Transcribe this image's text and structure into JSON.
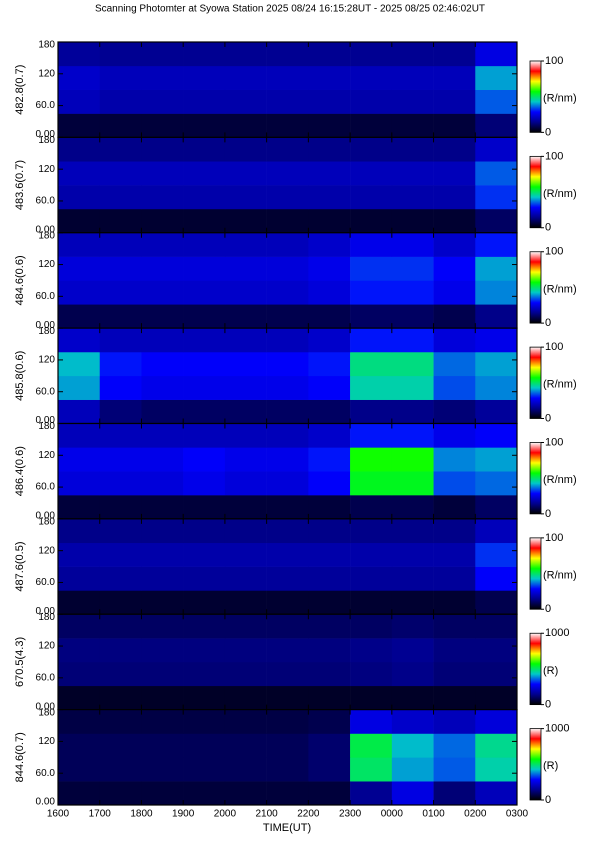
{
  "title": "Scanning Photomter at Syowa Station 2025 08/24 16:15:28UT - 2025 08/25 02:46:02UT",
  "xlabel": "TIME(UT)",
  "colormap": [
    "#000000",
    "#00008c",
    "#0000ff",
    "#00c8c8",
    "#00ff00",
    "#ffff00",
    "#ff0000",
    "#ffffff"
  ],
  "chart_data": [
    {
      "type": "heatmap",
      "ylabel": "482.8(0.7)",
      "colorbar_label": "(R/nm)",
      "zlim": [
        0,
        100
      ],
      "zticks": [
        0,
        100
      ],
      "xlim": [
        16,
        27
      ],
      "xticks": [
        {
          "value": 16,
          "label": "1600"
        },
        {
          "value": 17,
          "label": "1700"
        },
        {
          "value": 18,
          "label": "1800"
        },
        {
          "value": 19,
          "label": "1900"
        },
        {
          "value": 20,
          "label": "2000"
        },
        {
          "value": 21,
          "label": "2100"
        },
        {
          "value": 22,
          "label": "2200"
        },
        {
          "value": 23,
          "label": "2300"
        },
        {
          "value": 24,
          "label": "0000"
        },
        {
          "value": 25,
          "label": "0100"
        },
        {
          "value": 26,
          "label": "0200"
        },
        {
          "value": 27,
          "label": "0300"
        }
      ],
      "ylim": [
        0,
        180
      ],
      "yticks": [
        {
          "value": 0,
          "label": "0.00"
        },
        {
          "value": 60,
          "label": "60.0"
        },
        120,
        180
      ],
      "xbins": [
        16,
        17,
        18,
        19,
        20,
        21,
        22,
        23,
        24,
        25,
        26,
        27
      ],
      "ybins": [
        0,
        45,
        90,
        135,
        180
      ],
      "z": [
        [
          6,
          6,
          6,
          6,
          6,
          6,
          6,
          6,
          6,
          6,
          12
        ],
        [
          20,
          18,
          18,
          18,
          18,
          18,
          18,
          18,
          18,
          18,
          35
        ],
        [
          22,
          20,
          20,
          20,
          20,
          20,
          20,
          20,
          20,
          20,
          40
        ],
        [
          16,
          15,
          15,
          15,
          15,
          15,
          15,
          15,
          15,
          15,
          25
        ]
      ]
    },
    {
      "type": "heatmap",
      "ylabel": "483.6(0.7)",
      "colorbar_label": "(R/nm)",
      "zlim": [
        0,
        100
      ],
      "zticks": [
        0,
        100
      ],
      "xlim": [
        16,
        27
      ],
      "xticks": [
        {
          "value": 16,
          "label": "1600"
        },
        {
          "value": 17,
          "label": "1700"
        },
        {
          "value": 18,
          "label": "1800"
        },
        {
          "value": 19,
          "label": "1900"
        },
        {
          "value": 20,
          "label": "2000"
        },
        {
          "value": 21,
          "label": "2100"
        },
        {
          "value": 22,
          "label": "2200"
        },
        {
          "value": 23,
          "label": "2300"
        },
        {
          "value": 24,
          "label": "0000"
        },
        {
          "value": 25,
          "label": "0100"
        },
        {
          "value": 26,
          "label": "0200"
        },
        {
          "value": 27,
          "label": "0300"
        }
      ],
      "ylim": [
        0,
        180
      ],
      "yticks": [
        {
          "value": 0,
          "label": "0.00"
        },
        {
          "value": 60,
          "label": "60.0"
        },
        120,
        180
      ],
      "xbins": [
        16,
        17,
        18,
        19,
        20,
        21,
        22,
        23,
        24,
        25,
        26,
        27
      ],
      "ybins": [
        0,
        45,
        90,
        135,
        180
      ],
      "z": [
        [
          5,
          5,
          5,
          5,
          5,
          5,
          5,
          5,
          5,
          5,
          10
        ],
        [
          18,
          18,
          18,
          18,
          18,
          18,
          18,
          18,
          18,
          18,
          32
        ],
        [
          20,
          20,
          20,
          20,
          20,
          20,
          20,
          20,
          20,
          20,
          35
        ],
        [
          14,
          14,
          14,
          14,
          14,
          14,
          14,
          14,
          14,
          14,
          22
        ]
      ]
    },
    {
      "type": "heatmap",
      "ylabel": "484.6(0.6)",
      "colorbar_label": "(R/nm)",
      "zlim": [
        0,
        100
      ],
      "zticks": [
        0,
        100
      ],
      "xlim": [
        16,
        27
      ],
      "xticks": [
        {
          "value": 16,
          "label": "1600"
        },
        {
          "value": 17,
          "label": "1700"
        },
        {
          "value": 18,
          "label": "1800"
        },
        {
          "value": 19,
          "label": "1900"
        },
        {
          "value": 20,
          "label": "2000"
        },
        {
          "value": 21,
          "label": "2100"
        },
        {
          "value": 22,
          "label": "2200"
        },
        {
          "value": 23,
          "label": "2300"
        },
        {
          "value": 24,
          "label": "0000"
        },
        {
          "value": 25,
          "label": "0100"
        },
        {
          "value": 26,
          "label": "0200"
        },
        {
          "value": 27,
          "label": "0300"
        }
      ],
      "ylim": [
        0,
        180
      ],
      "yticks": [
        {
          "value": 0,
          "label": "0.00"
        },
        {
          "value": 60,
          "label": "60.0"
        },
        120,
        180
      ],
      "xbins": [
        16,
        17,
        18,
        19,
        20,
        21,
        22,
        23,
        24,
        25,
        26,
        27
      ],
      "ybins": [
        0,
        45,
        90,
        135,
        180
      ],
      "z": [
        [
          8,
          8,
          8,
          8,
          8,
          8,
          8,
          10,
          10,
          8,
          14
        ],
        [
          22,
          22,
          22,
          22,
          22,
          22,
          24,
          30,
          30,
          26,
          38
        ],
        [
          24,
          24,
          24,
          24,
          24,
          24,
          26,
          32,
          32,
          28,
          40
        ],
        [
          20,
          20,
          20,
          20,
          20,
          20,
          22,
          26,
          26,
          22,
          30
        ]
      ]
    },
    {
      "type": "heatmap",
      "ylabel": "485.8(0.6)",
      "colorbar_label": "(R/nm)",
      "zlim": [
        0,
        100
      ],
      "zticks": [
        0,
        100
      ],
      "xlim": [
        16,
        27
      ],
      "xticks": [
        {
          "value": 16,
          "label": "1600"
        },
        {
          "value": 17,
          "label": "1700"
        },
        {
          "value": 18,
          "label": "1800"
        },
        {
          "value": 19,
          "label": "1900"
        },
        {
          "value": 20,
          "label": "2000"
        },
        {
          "value": 21,
          "label": "2100"
        },
        {
          "value": 22,
          "label": "2200"
        },
        {
          "value": 23,
          "label": "2300"
        },
        {
          "value": 24,
          "label": "0000"
        },
        {
          "value": 25,
          "label": "0100"
        },
        {
          "value": 26,
          "label": "0200"
        },
        {
          "value": 27,
          "label": "0300"
        }
      ],
      "ylim": [
        0,
        180
      ],
      "yticks": [
        {
          "value": 0,
          "label": "0.00"
        },
        {
          "value": 60,
          "label": "60.0"
        },
        120,
        180
      ],
      "xbins": [
        16,
        17,
        18,
        19,
        20,
        21,
        22,
        23,
        24,
        25,
        26,
        27
      ],
      "ybins": [
        0,
        45,
        90,
        135,
        180
      ],
      "z": [
        [
          20,
          12,
          10,
          10,
          10,
          10,
          10,
          14,
          14,
          12,
          16
        ],
        [
          40,
          28,
          26,
          26,
          26,
          26,
          28,
          45,
          45,
          34,
          38
        ],
        [
          42,
          30,
          28,
          28,
          28,
          28,
          30,
          48,
          48,
          36,
          40
        ],
        [
          22,
          20,
          20,
          20,
          20,
          20,
          22,
          30,
          30,
          24,
          26
        ]
      ]
    },
    {
      "type": "heatmap",
      "ylabel": "486.4(0.6)",
      "colorbar_label": "(R/nm)",
      "zlim": [
        0,
        100
      ],
      "zticks": [
        0,
        100
      ],
      "xlim": [
        16,
        27
      ],
      "xticks": [
        {
          "value": 16,
          "label": "1600"
        },
        {
          "value": 17,
          "label": "1700"
        },
        {
          "value": 18,
          "label": "1800"
        },
        {
          "value": 19,
          "label": "1900"
        },
        {
          "value": 20,
          "label": "2000"
        },
        {
          "value": 21,
          "label": "2100"
        },
        {
          "value": 22,
          "label": "2200"
        },
        {
          "value": 23,
          "label": "2300"
        },
        {
          "value": 24,
          "label": "0000"
        },
        {
          "value": 25,
          "label": "0100"
        },
        {
          "value": 26,
          "label": "0200"
        },
        {
          "value": 27,
          "label": "0300"
        }
      ],
      "ylim": [
        0,
        180
      ],
      "yticks": [
        {
          "value": 0,
          "label": "0.00"
        },
        {
          "value": 60,
          "label": "60.0"
        },
        120,
        180
      ],
      "xbins": [
        16,
        17,
        18,
        19,
        20,
        21,
        22,
        23,
        24,
        25,
        26,
        27
      ],
      "ybins": [
        0,
        45,
        90,
        135,
        180
      ],
      "z": [
        [
          6,
          6,
          6,
          6,
          6,
          6,
          6,
          8,
          8,
          6,
          10
        ],
        [
          24,
          24,
          24,
          26,
          24,
          24,
          28,
          55,
          55,
          34,
          36
        ],
        [
          26,
          26,
          26,
          28,
          26,
          26,
          30,
          58,
          58,
          38,
          40
        ],
        [
          20,
          20,
          20,
          20,
          20,
          20,
          22,
          30,
          30,
          26,
          28
        ]
      ]
    },
    {
      "type": "heatmap",
      "ylabel": "487.6(0.5)",
      "colorbar_label": "(R/nm)",
      "zlim": [
        0,
        100
      ],
      "zticks": [
        0,
        100
      ],
      "xlim": [
        16,
        27
      ],
      "xticks": [
        {
          "value": 16,
          "label": "1600"
        },
        {
          "value": 17,
          "label": "1700"
        },
        {
          "value": 18,
          "label": "1800"
        },
        {
          "value": 19,
          "label": "1900"
        },
        {
          "value": 20,
          "label": "2000"
        },
        {
          "value": 21,
          "label": "2100"
        },
        {
          "value": 22,
          "label": "2200"
        },
        {
          "value": 23,
          "label": "2300"
        },
        {
          "value": 24,
          "label": "0000"
        },
        {
          "value": 25,
          "label": "0100"
        },
        {
          "value": 26,
          "label": "0200"
        },
        {
          "value": 27,
          "label": "0300"
        }
      ],
      "ylim": [
        0,
        180
      ],
      "yticks": [
        {
          "value": 0,
          "label": "0.00"
        },
        {
          "value": 60,
          "label": "60.0"
        },
        120,
        180
      ],
      "xbins": [
        16,
        17,
        18,
        19,
        20,
        21,
        22,
        23,
        24,
        25,
        26,
        27
      ],
      "ybins": [
        0,
        45,
        90,
        135,
        180
      ],
      "z": [
        [
          5,
          5,
          5,
          5,
          5,
          5,
          5,
          5,
          5,
          5,
          8
        ],
        [
          16,
          16,
          16,
          16,
          16,
          16,
          16,
          16,
          16,
          16,
          28
        ],
        [
          18,
          18,
          18,
          18,
          18,
          18,
          18,
          18,
          18,
          18,
          32
        ],
        [
          14,
          14,
          14,
          14,
          14,
          14,
          14,
          14,
          14,
          14,
          20
        ]
      ]
    },
    {
      "type": "heatmap",
      "ylabel": "670.5(4.3)",
      "colorbar_label": "(R)",
      "zlim": [
        0,
        1000
      ],
      "zticks": [
        0,
        1000
      ],
      "xlim": [
        16,
        27
      ],
      "xticks": [
        {
          "value": 16,
          "label": "1600"
        },
        {
          "value": 17,
          "label": "1700"
        },
        {
          "value": 18,
          "label": "1800"
        },
        {
          "value": 19,
          "label": "1900"
        },
        {
          "value": 20,
          "label": "2000"
        },
        {
          "value": 21,
          "label": "2100"
        },
        {
          "value": 22,
          "label": "2200"
        },
        {
          "value": 23,
          "label": "2300"
        },
        {
          "value": 24,
          "label": "0000"
        },
        {
          "value": 25,
          "label": "0100"
        },
        {
          "value": 26,
          "label": "0200"
        },
        {
          "value": 27,
          "label": "0300"
        }
      ],
      "ylim": [
        0,
        180
      ],
      "yticks": [
        {
          "value": 0,
          "label": "0.00"
        },
        {
          "value": 60,
          "label": "60.0"
        },
        120,
        180
      ],
      "xbins": [
        16,
        17,
        18,
        19,
        20,
        21,
        22,
        23,
        24,
        25,
        26,
        27
      ],
      "ybins": [
        0,
        45,
        90,
        135,
        180
      ],
      "z": [
        [
          40,
          40,
          40,
          40,
          40,
          40,
          40,
          40,
          40,
          40,
          40
        ],
        [
          120,
          120,
          120,
          120,
          120,
          120,
          120,
          130,
          140,
          120,
          120
        ],
        [
          130,
          130,
          130,
          130,
          130,
          130,
          130,
          140,
          150,
          130,
          130
        ],
        [
          100,
          100,
          100,
          100,
          100,
          100,
          100,
          100,
          110,
          100,
          100
        ]
      ]
    },
    {
      "type": "heatmap",
      "ylabel": "844.6(0.7)",
      "colorbar_label": "(R)",
      "zlim": [
        0,
        1000
      ],
      "zticks": [
        0,
        1000
      ],
      "xlim": [
        16,
        27
      ],
      "xticks": [
        {
          "value": 16,
          "label": "1600"
        },
        {
          "value": 17,
          "label": "1700"
        },
        {
          "value": 18,
          "label": "1800"
        },
        {
          "value": 19,
          "label": "1900"
        },
        {
          "value": 20,
          "label": "2000"
        },
        {
          "value": 21,
          "label": "2100"
        },
        {
          "value": 22,
          "label": "2200"
        },
        {
          "value": 23,
          "label": "2300"
        },
        {
          "value": 24,
          "label": "0000"
        },
        {
          "value": 25,
          "label": "0100"
        },
        {
          "value": 26,
          "label": "0200"
        },
        {
          "value": 27,
          "label": "0300"
        }
      ],
      "ylim": [
        0,
        180
      ],
      "yticks": [
        {
          "value": 0,
          "label": "0.00"
        },
        {
          "value": 60,
          "label": "60.0"
        },
        120,
        180
      ],
      "xbins": [
        16,
        17,
        18,
        19,
        20,
        21,
        22,
        23,
        24,
        25,
        26,
        27
      ],
      "ybins": [
        0,
        45,
        90,
        135,
        180
      ],
      "z": [
        [
          60,
          60,
          60,
          60,
          60,
          60,
          60,
          150,
          250,
          120,
          200
        ],
        [
          90,
          90,
          90,
          90,
          90,
          90,
          110,
          500,
          400,
          350,
          450
        ],
        [
          90,
          90,
          90,
          90,
          90,
          90,
          110,
          520,
          420,
          360,
          470
        ],
        [
          70,
          70,
          70,
          70,
          70,
          70,
          80,
          250,
          220,
          200,
          240
        ]
      ]
    }
  ]
}
